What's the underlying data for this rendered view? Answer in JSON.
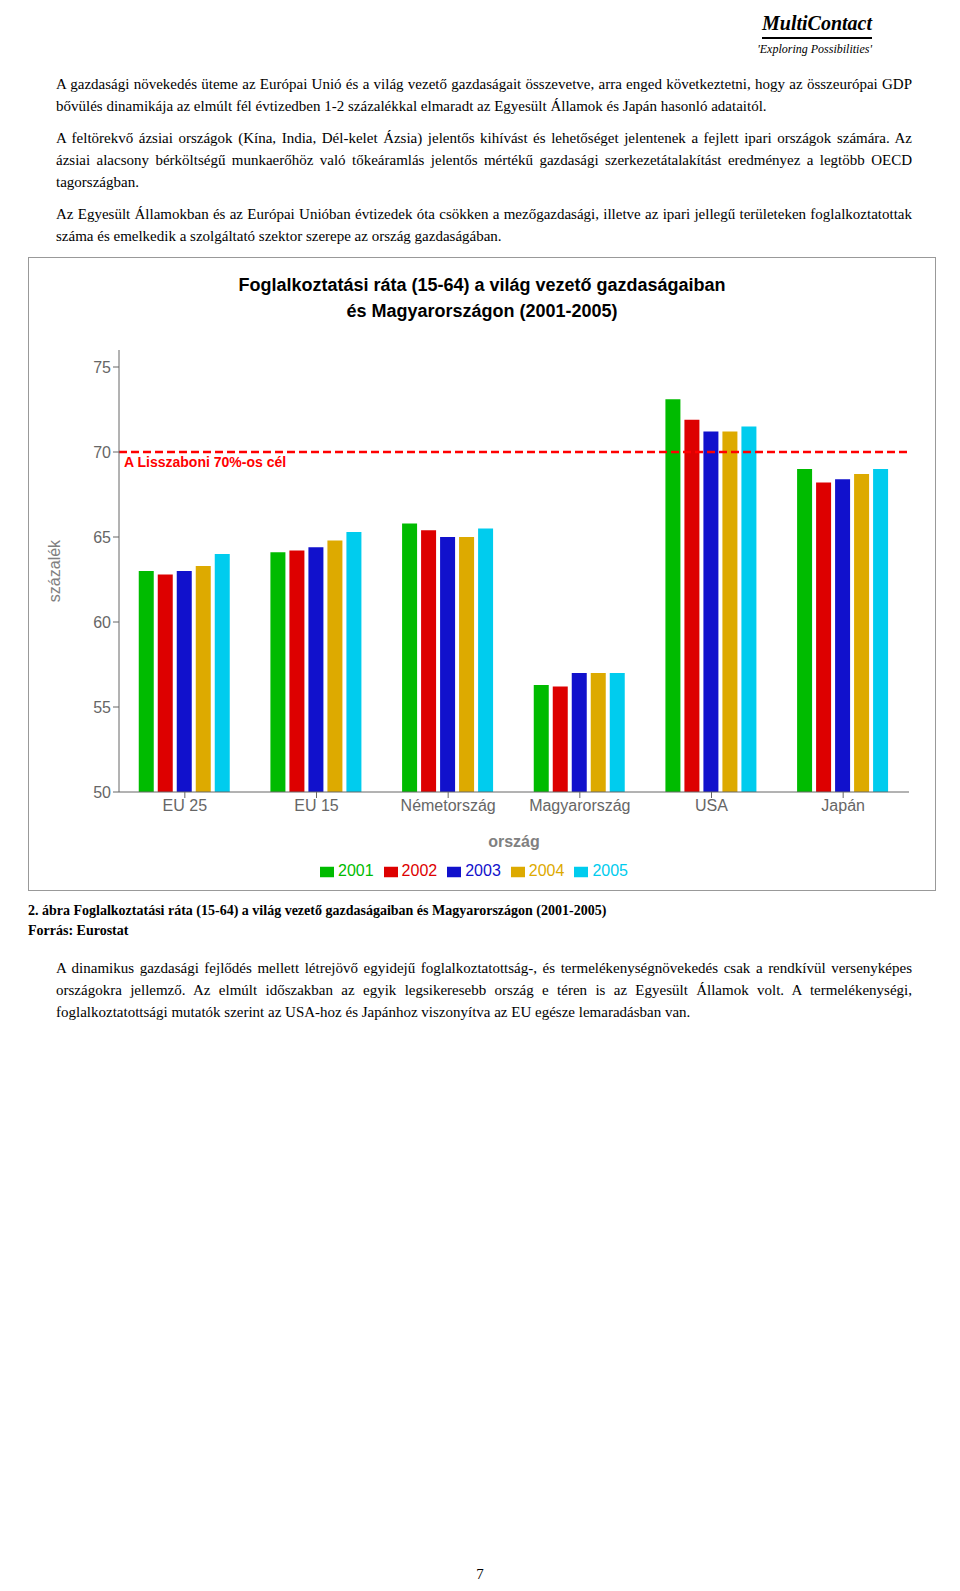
{
  "header_company": "MultiContact",
  "header_tagline": "'Exploring Possibilities'",
  "paragraphs": [
    "A gazdasági növekedés üteme az Európai Unió és a világ vezető gazdaságait összevetve, arra enged következtetni, hogy az összeurópai GDP bővülés dinamikája az elmúlt fél évtizedben 1-2 százalékkal elmaradt az Egyesült Államok és Japán hasonló adataitól.",
    "A feltörekvő ázsiai országok (Kína, India, Dél-kelet Ázsia) jelentős kihívást és lehetőséget jelentenek a fejlett ipari országok számára. Az ázsiai alacsony bérköltségű munkaerőhöz való tőkeáramlás jelentős mértékű gazdasági szerkezetátalakítást eredményez a legtöbb OECD tagországban.",
    "Az Egyesült Államokban és az Európai Unióban évtizedek óta csökken a mezőgazdasági, illetve az ipari jellegű területeken foglalkoztatottak száma és emelkedik a szolgáltató szektor szerepe az ország gazdaságában."
  ],
  "chart_data": {
    "type": "bar",
    "title": "Foglalkoztatási ráta (15-64) a világ vezető gazdaságaiban",
    "subtitle": "és Magyarországon (2001-2005)",
    "categories": [
      "EU 25",
      "EU 15",
      "Németország",
      "Magyarország",
      "USA",
      "Japán"
    ],
    "xlabel": "ország",
    "ylabel": "százalék",
    "ylim": [
      50,
      76
    ],
    "yticks": [
      50,
      55,
      60,
      65,
      70,
      75
    ],
    "series": [
      {
        "name": "2001",
        "color": "#00bb00",
        "values": [
          63.0,
          64.1,
          65.8,
          56.3,
          73.1,
          69.0
        ]
      },
      {
        "name": "2002",
        "color": "#dd0000",
        "values": [
          62.8,
          64.2,
          65.4,
          56.2,
          71.9,
          68.2
        ]
      },
      {
        "name": "2003",
        "color": "#1111cc",
        "values": [
          63.0,
          64.4,
          65.0,
          57.0,
          71.2,
          68.4
        ]
      },
      {
        "name": "2004",
        "color": "#ddaa00",
        "values": [
          63.3,
          64.8,
          65.0,
          57.0,
          71.2,
          68.7
        ]
      },
      {
        "name": "2005",
        "color": "#00ccee",
        "values": [
          64.0,
          65.3,
          65.5,
          57.0,
          71.5,
          69.0
        ]
      }
    ],
    "reference_line": {
      "y": 70,
      "label": "A Lisszaboni 70%-os cél",
      "color": "red"
    },
    "grid": false,
    "legend": "bottom"
  },
  "caption": [
    "2. ábra Foglalkoztatási ráta (15-64) a világ vezető gazdaságaiban és Magyarországon (2001-2005)",
    "Forrás: Eurostat"
  ],
  "paragraphs_after": [
    "A dinamikus gazdasági fejlődés mellett létrejövő egyidejű foglalkoztatottság-, és termelékenységnövekedés csak a rendkívül versenyképes országokra jellemző. Az elmúlt időszakban az egyik legsikeresebb ország e téren is az Egyesült Államok volt. A termelékenységi, foglalkoztatottsági mutatók szerint az USA-hoz és Japánhoz viszonyítva az EU egésze lemaradásban van."
  ],
  "page_number": "7"
}
